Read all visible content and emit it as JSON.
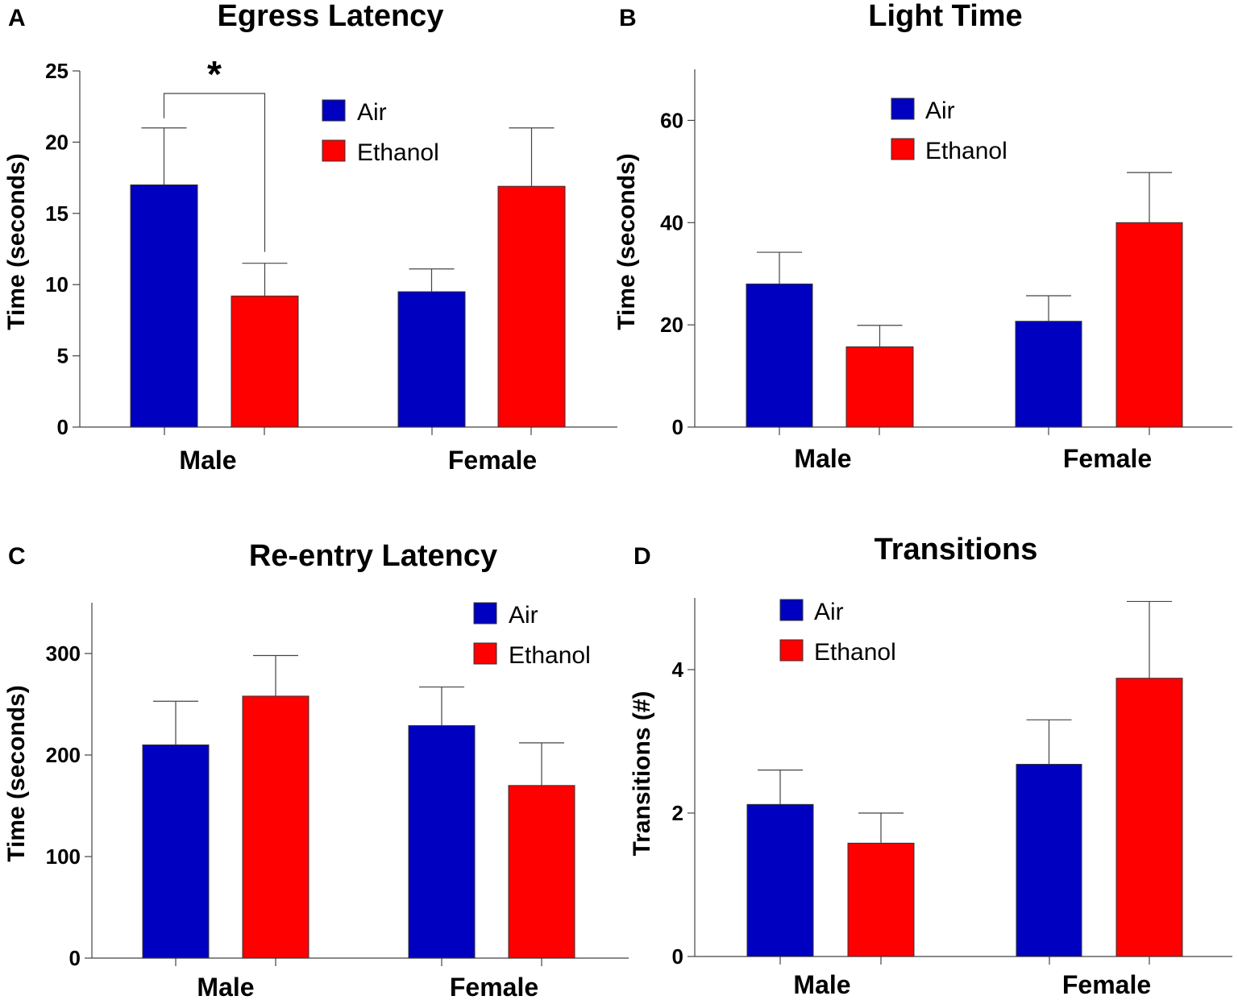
{
  "colors": {
    "air": "#0000C0",
    "ethanol": "#FF0000"
  },
  "chart_data": [
    {
      "panel": "A",
      "type": "bar",
      "title": "Egress Latency",
      "ylabel": "Time (seconds)",
      "xlabel": "",
      "categories": [
        "Male",
        "Female"
      ],
      "ylim": [
        0,
        25
      ],
      "yticks": [
        0,
        5,
        10,
        15,
        20,
        25
      ],
      "series": [
        {
          "name": "Air",
          "values": [
            17.0,
            9.5
          ],
          "errors": [
            4.0,
            1.6
          ]
        },
        {
          "name": "Ethanol",
          "values": [
            9.2,
            16.9
          ],
          "errors": [
            2.3,
            4.1
          ]
        }
      ],
      "legend": [
        "Air",
        "Ethanol"
      ],
      "legend_position": "top-center",
      "annotation": {
        "text": "*",
        "compares": "Male: Air vs Ethanol"
      }
    },
    {
      "panel": "B",
      "type": "bar",
      "title": "Light Time",
      "ylabel": "Time (seconds)",
      "xlabel": "",
      "categories": [
        "Male",
        "Female"
      ],
      "ylim": [
        0,
        70
      ],
      "yticks": [
        0,
        20,
        40,
        60
      ],
      "series": [
        {
          "name": "Air",
          "values": [
            28,
            20.7
          ],
          "errors": [
            6.2,
            5.0
          ]
        },
        {
          "name": "Ethanol",
          "values": [
            15.7,
            40
          ],
          "errors": [
            4.2,
            9.8
          ]
        }
      ],
      "legend": [
        "Air",
        "Ethanol"
      ],
      "legend_position": "top-center"
    },
    {
      "panel": "C",
      "type": "bar",
      "title": "Re-entry Latency",
      "ylabel": "Time (seconds)",
      "xlabel": "",
      "categories": [
        "Male",
        "Female"
      ],
      "ylim": [
        0,
        350
      ],
      "yticks": [
        0,
        100,
        200,
        300
      ],
      "series": [
        {
          "name": "Air",
          "values": [
            210,
            229
          ],
          "errors": [
            43,
            38
          ]
        },
        {
          "name": "Ethanol",
          "values": [
            258,
            170
          ],
          "errors": [
            40,
            42
          ]
        }
      ],
      "legend": [
        "Air",
        "Ethanol"
      ],
      "legend_position": "top-right"
    },
    {
      "panel": "D",
      "type": "bar",
      "title": "Transitions",
      "ylabel": "Transitions (#)",
      "xlabel": "",
      "categories": [
        "Male",
        "Female"
      ],
      "ylim": [
        0,
        5
      ],
      "yticks": [
        0,
        2,
        4
      ],
      "series": [
        {
          "name": "Air",
          "values": [
            2.12,
            2.68
          ],
          "errors": [
            0.48,
            0.62
          ]
        },
        {
          "name": "Ethanol",
          "values": [
            1.58,
            3.88
          ],
          "errors": [
            0.42,
            1.07
          ]
        }
      ],
      "legend": [
        "Air",
        "Ethanol"
      ],
      "legend_position": "top-left"
    }
  ]
}
